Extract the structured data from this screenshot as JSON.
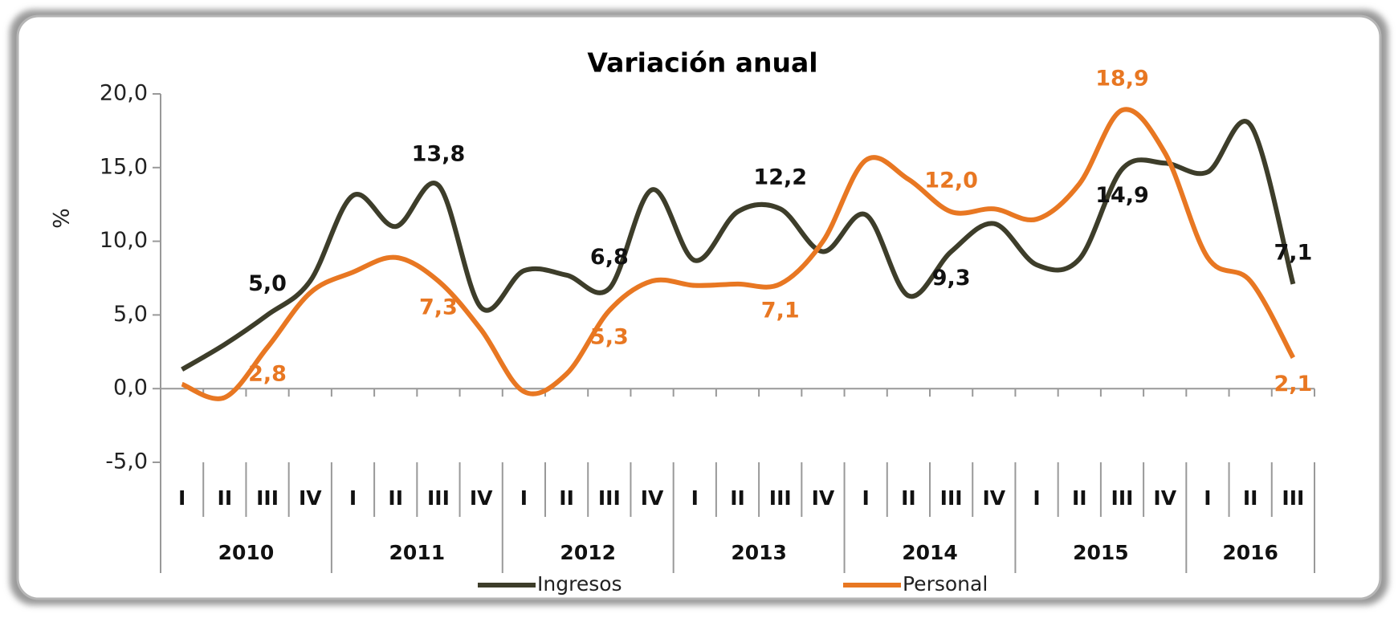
{
  "chart_data": {
    "type": "line",
    "title": "Variación anual",
    "y_label": "%",
    "categories": [
      "I",
      "II",
      "III",
      "IV",
      "I",
      "II",
      "III",
      "IV",
      "I",
      "II",
      "III",
      "IV",
      "I",
      "II",
      "III",
      "IV",
      "I",
      "II",
      "III",
      "IV",
      "I",
      "II",
      "III",
      "IV",
      "I",
      "II",
      "III"
    ],
    "x_groups": [
      {
        "label": "2010",
        "size": 4
      },
      {
        "label": "2011",
        "size": 4
      },
      {
        "label": "2012",
        "size": 4
      },
      {
        "label": "2013",
        "size": 4
      },
      {
        "label": "2014",
        "size": 4
      },
      {
        "label": "2015",
        "size": 4
      },
      {
        "label": "2016",
        "size": 3
      }
    ],
    "series": [
      {
        "name": "Ingresos",
        "color": "#3d3d2a",
        "values": [
          1.3,
          3.0,
          5.0,
          7.3,
          13.1,
          11.0,
          13.8,
          5.5,
          8.0,
          7.7,
          6.8,
          13.5,
          8.7,
          12.0,
          12.2,
          9.3,
          11.8,
          6.3,
          9.3,
          11.2,
          8.4,
          8.8,
          14.9,
          15.3,
          14.7,
          17.9,
          7.1
        ],
        "value_labels": [
          null,
          null,
          "5,0",
          null,
          null,
          null,
          "13,8",
          null,
          null,
          null,
          "6,8",
          null,
          null,
          null,
          "12,2",
          null,
          null,
          null,
          "9,3",
          null,
          null,
          null,
          "14,9",
          null,
          null,
          null,
          "7,1"
        ],
        "label_color": "#111111"
      },
      {
        "name": "Personal",
        "color": "#e87722",
        "values": [
          0.3,
          -0.6,
          2.8,
          6.5,
          7.9,
          8.9,
          7.3,
          4.0,
          -0.2,
          1.0,
          5.3,
          7.3,
          7.0,
          7.1,
          7.1,
          10.0,
          15.5,
          14.2,
          12.0,
          12.2,
          11.5,
          13.9,
          18.9,
          16.0,
          8.9,
          7.3,
          2.1
        ],
        "value_labels": [
          null,
          null,
          "2,8",
          null,
          null,
          null,
          "7,3",
          null,
          null,
          null,
          "5,3",
          null,
          null,
          null,
          "7,1",
          null,
          null,
          null,
          "12,0",
          null,
          null,
          null,
          "18,9",
          null,
          null,
          null,
          "2,1"
        ],
        "label_color": "#e87722"
      }
    ],
    "ylim": [
      -5,
      20
    ],
    "yticks": [
      {
        "value": -5,
        "label": "-5,0"
      },
      {
        "value": 0,
        "label": "0,0"
      },
      {
        "value": 5,
        "label": "5,0"
      },
      {
        "value": 10,
        "label": "10,0"
      },
      {
        "value": 15,
        "label": "15,0"
      },
      {
        "value": 20,
        "label": "20,0"
      }
    ],
    "grid": false,
    "legend": "bottom"
  }
}
